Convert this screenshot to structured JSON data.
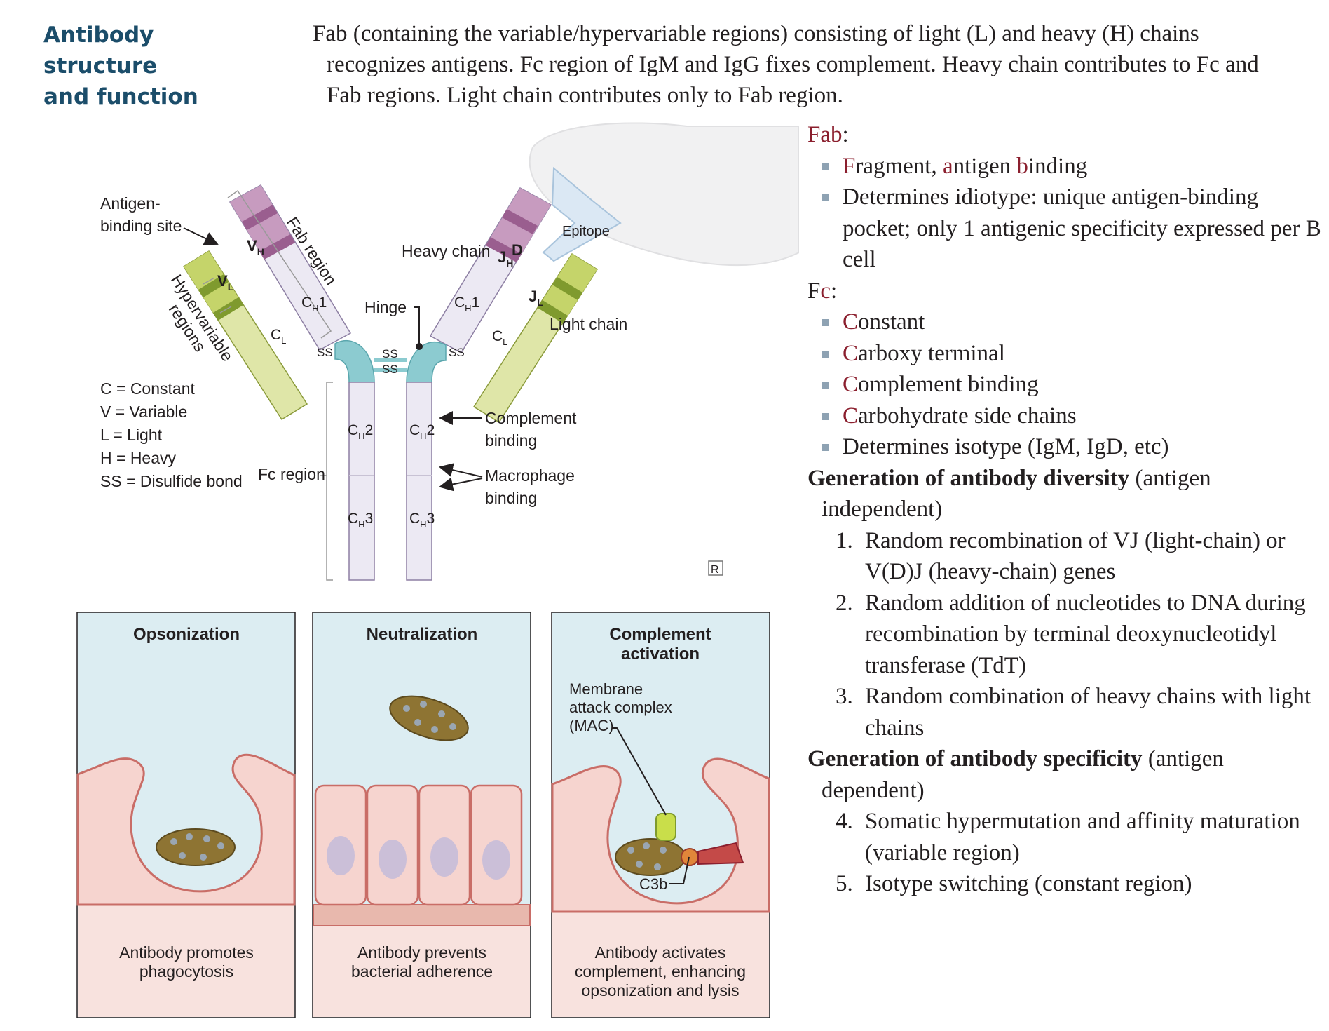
{
  "section": {
    "title_line1": "Antibody structure",
    "title_line2": "and function",
    "intro": "Fab (containing the variable/hypervariable regions) consisting of light (L) and heavy (H) chains recognizes antigens. Fc region of IgM and IgG fixes complement. Heavy chain contributes to Fc and Fab regions. Light chain contributes only to Fab region."
  },
  "colors": {
    "title_blue": "#1b4d6a",
    "accent_red": "#8b1f2e",
    "bullet_gray": "#8ea2b3"
  },
  "fab": {
    "head": "Fab",
    "colon": ":",
    "bullet1_parts": [
      "F",
      "ragment, ",
      "a",
      "ntigen ",
      "b",
      "inding"
    ],
    "bullet2": "Determines idiotype: unique antigen-binding pocket; only 1 antigenic specificity expressed per B cell"
  },
  "fc": {
    "head_f": "F",
    "head_c": "c",
    "colon": ":",
    "bullets": [
      {
        "initial": "C",
        "rest": "onstant"
      },
      {
        "initial": "C",
        "rest": "arboxy terminal"
      },
      {
        "initial": "C",
        "rest": "omplement binding"
      },
      {
        "initial": "C",
        "rest": "arbohydrate side chains"
      }
    ],
    "bullet5": "Determines isotype (IgM, IgD, etc)"
  },
  "diversity": {
    "head_bold": "Generation of antibody diversity",
    "head_rest": " (antigen",
    "head_rest2": "independent)",
    "items": [
      {
        "num": "1.",
        "text": "Random recombination of VJ (light-chain) or V(D)J (heavy-chain) genes"
      },
      {
        "num": "2.",
        "text": "Random addition of nucleotides to DNA during recombination by terminal deoxynucleotidyl transferase (TdT)"
      },
      {
        "num": "3.",
        "text": "Random combination of heavy chains with light chains"
      }
    ]
  },
  "specificity": {
    "head_bold": "Generation of antibody specificity",
    "head_rest": " (antigen",
    "head_rest2": "dependent)",
    "items": [
      {
        "num": "4.",
        "text": "Somatic hypermutation and affinity maturation (variable region)"
      },
      {
        "num": "5.",
        "text": "Isotype switching (constant region)"
      }
    ]
  },
  "diagram": {
    "antigen_binding_site_1": "Antigen-",
    "antigen_binding_site_2": "binding site",
    "hypervariable_1": "Hypervariable",
    "hypervariable_2": "regions",
    "fab_region": "Fab region",
    "heavy_chain": "Heavy chain",
    "epitope": "Epitope",
    "hinge": "Hinge",
    "light_chain": "Light chain",
    "ss": "SS",
    "vh": "V",
    "vh_sub": "H",
    "vl": "V",
    "vl_sub": "L",
    "ch1": "C",
    "ch1_sub": "H",
    "ch1_num": "1",
    "cl": "C",
    "cl_sub": "L",
    "jh": "J",
    "jh_sub": "H",
    "d": "D",
    "jl": "J",
    "jl_sub": "L",
    "ch2": "C",
    "ch2_sub": "H",
    "ch2_num": "2",
    "ch3": "C",
    "ch3_sub": "H",
    "ch3_num": "3",
    "complement_binding_1": "Complement",
    "complement_binding_2": "binding",
    "macrophage_binding_1": "Macrophage",
    "macrophage_binding_2": "binding",
    "fc_region": "Fc region",
    "legend": [
      "C = Constant",
      "V = Variable",
      "L = Light",
      "H = Heavy",
      "SS = Disulfide bond"
    ],
    "rx": "R"
  },
  "panels": {
    "opsonization": {
      "title": "Opsonization",
      "caption1": "Antibody promotes",
      "caption2": "phagocytosis"
    },
    "neutralization": {
      "title": "Neutralization",
      "caption1": "Antibody prevents",
      "caption2": "bacterial adherence"
    },
    "complement": {
      "title1": "Complement",
      "title2": "activation",
      "mac1": "Membrane",
      "mac2": "attack complex",
      "mac3": "(MAC)",
      "c3b": "C3b",
      "caption1": "Antibody activates",
      "caption2": "complement, enhancing",
      "caption3": "opsonization and lysis"
    }
  }
}
